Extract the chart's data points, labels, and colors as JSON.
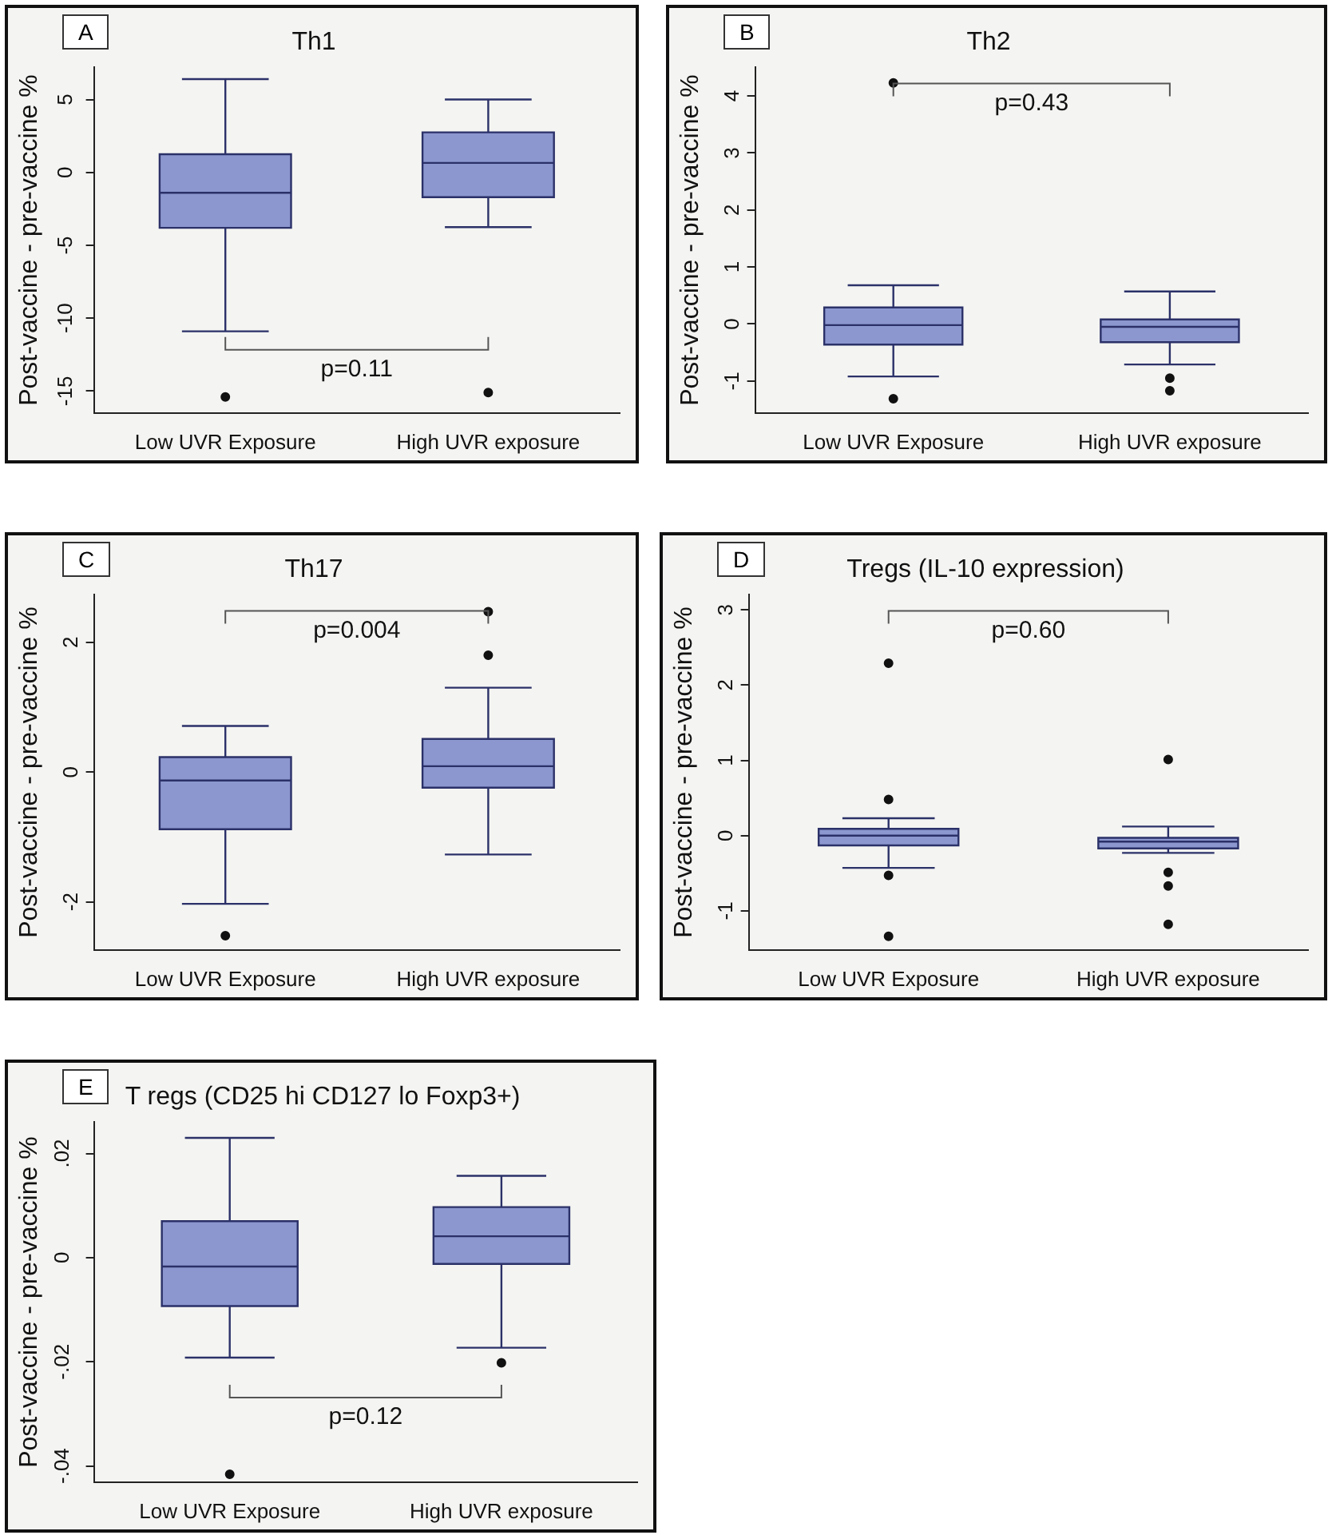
{
  "chart_data": [
    {
      "type": "box",
      "title": "Th1",
      "ylabel": "Post-vaccine - pre-vaccine %",
      "categories": [
        "Low UVR Exposure",
        "High UVR exposure"
      ],
      "color": "#8c97cf",
      "boxes": [
        {
          "low": -10.9,
          "q1": -3.8,
          "median": -1.4,
          "q3": 1.25,
          "high": 6.4,
          "outliers": [
            -15.4
          ]
        },
        {
          "low": -3.75,
          "q1": -1.7,
          "median": 0.65,
          "q3": 2.75,
          "high": 5.0,
          "outliers": [
            -15.1
          ]
        }
      ],
      "ylim": [
        -16.5,
        7.2
      ],
      "yticks": [
        -15,
        -10,
        -5,
        0,
        5
      ],
      "annotations": [
        "A",
        "p=0.11"
      ]
    },
    {
      "type": "box",
      "title": "Th2",
      "ylabel": "Post-vaccine - pre-vaccine %",
      "categories": [
        "Low UVR Exposure",
        "High UVR exposure"
      ],
      "color": "#8c97cf",
      "boxes": [
        {
          "low": -0.92,
          "q1": -0.36,
          "median": -0.02,
          "q3": 0.29,
          "high": 0.68,
          "outliers": [
            4.23,
            -1.31
          ]
        },
        {
          "low": -0.71,
          "q1": -0.32,
          "median": -0.05,
          "q3": 0.08,
          "high": 0.57,
          "outliers": [
            -0.95,
            -1.17
          ]
        }
      ],
      "ylim": [
        -1.56,
        4.5
      ],
      "yticks": [
        -1,
        0,
        1,
        2,
        3,
        4
      ],
      "annotations": [
        "B",
        "p=0.43"
      ]
    },
    {
      "type": "box",
      "title": "Th17",
      "ylabel": "Post-vaccine - pre-vaccine %",
      "categories": [
        "Low UVR Exposure",
        "High UVR exposure"
      ],
      "color": "#8c97cf",
      "boxes": [
        {
          "low": -2.03,
          "q1": -0.88,
          "median": -0.13,
          "q3": 0.23,
          "high": 0.71,
          "outliers": [
            -2.52
          ]
        },
        {
          "low": -1.27,
          "q1": -0.24,
          "median": 0.09,
          "q3": 0.51,
          "high": 1.3,
          "outliers": [
            2.47,
            1.8
          ]
        }
      ],
      "ylim": [
        -2.74,
        2.73
      ],
      "yticks": [
        -2,
        0,
        2
      ],
      "annotations": [
        "C",
        "p=0.004"
      ]
    },
    {
      "type": "box",
      "title": "Tregs (IL-10 expression)",
      "ylabel": "Post-vaccine - pre-vaccine %",
      "categories": [
        "Low UVR Exposure",
        "High UVR exposure"
      ],
      "color": "#8c97cf",
      "boxes": [
        {
          "low": -0.43,
          "q1": -0.13,
          "median": 0,
          "q3": 0.09,
          "high": 0.23,
          "outliers": [
            2.29,
            0.48,
            -0.53,
            -1.34
          ]
        },
        {
          "low": -0.23,
          "q1": -0.17,
          "median": -0.08,
          "q3": -0.03,
          "high": 0.12,
          "outliers": [
            1.01,
            -0.49,
            -0.67,
            -1.18
          ]
        }
      ],
      "ylim": [
        -1.52,
        3.2
      ],
      "yticks": [
        -1,
        0,
        1,
        2,
        3
      ],
      "annotations": [
        "D",
        "p=0.60"
      ]
    },
    {
      "type": "box",
      "title": "T regs (CD25 hi CD127 lo Foxp3+)",
      "ylabel": "Post-vaccine - pre-vaccine %",
      "categories": [
        "Low UVR Exposure",
        "High UVR exposure"
      ],
      "color": "#8c97cf",
      "boxes": [
        {
          "low": -0.0192,
          "q1": -0.0093,
          "median": -0.0017,
          "q3": 0.007,
          "high": 0.023,
          "outliers": [
            -0.0416
          ]
        },
        {
          "low": -0.0173,
          "q1": -0.0012,
          "median": 0.0041,
          "q3": 0.0097,
          "high": 0.0157,
          "outliers": [
            -0.0202
          ]
        }
      ],
      "ylim": [
        -0.0431,
        0.026
      ],
      "yticks": [
        {
          "value": -0.04,
          "label": "-.04"
        },
        {
          "value": -0.02,
          "label": "-.02"
        },
        0,
        {
          "value": 0.02,
          "label": ".02"
        }
      ],
      "annotations": [
        "E",
        "p=0.12"
      ]
    }
  ]
}
